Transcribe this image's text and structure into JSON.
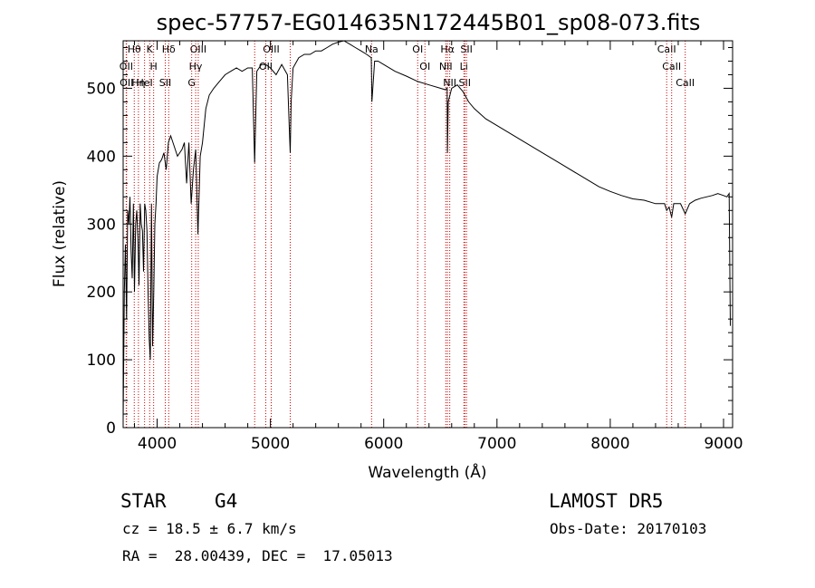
{
  "chart_data": {
    "type": "line",
    "title": "spec-57757-EG014635N172445B01_sp08-073.fits",
    "xlabel": "Wavelength (Å)",
    "ylabel": "Flux (relative)",
    "xlim": [
      3700,
      9080
    ],
    "ylim": [
      0,
      570
    ],
    "xticks": [
      4000,
      5000,
      6000,
      7000,
      8000,
      9000
    ],
    "yticks": [
      0,
      100,
      200,
      300,
      400,
      500
    ],
    "grid": false,
    "line_color": "#000000",
    "marker_color": "#cc0000",
    "series": [
      {
        "x": [
          3700,
          3710,
          3720,
          3730,
          3740,
          3750,
          3760,
          3770,
          3780,
          3790,
          3800,
          3810,
          3820,
          3830,
          3840,
          3850,
          3860,
          3870,
          3880,
          3890,
          3900,
          3910,
          3920,
          3930,
          3940,
          3950,
          3960,
          3970,
          3980,
          3990,
          4000,
          4020,
          4040,
          4060,
          4080,
          4100,
          4120,
          4140,
          4160,
          4180,
          4200,
          4220,
          4240,
          4260,
          4280,
          4300,
          4320,
          4340,
          4360,
          4380,
          4400,
          4430,
          4460,
          4500,
          4550,
          4600,
          4650,
          4700,
          4750,
          4800,
          4840,
          4861,
          4880,
          4920,
          4960,
          5000,
          5050,
          5100,
          5150,
          5167,
          5175,
          5183,
          5200,
          5250,
          5300,
          5350,
          5400,
          5450,
          5500,
          5550,
          5600,
          5650,
          5700,
          5750,
          5800,
          5850,
          5890,
          5896,
          5920,
          5950,
          6000,
          6100,
          6200,
          6300,
          6400,
          6500,
          6540,
          6560,
          6563,
          6570,
          6600,
          6650,
          6700,
          6750,
          6800,
          6900,
          7000,
          7100,
          7200,
          7300,
          7400,
          7500,
          7600,
          7700,
          7800,
          7900,
          8000,
          8100,
          8200,
          8300,
          8400,
          8480,
          8498,
          8520,
          8542,
          8560,
          8620,
          8662,
          8700,
          8750,
          8800,
          8850,
          8900,
          8950,
          9000,
          9030,
          9050,
          9060
        ],
        "y": [
          10,
          200,
          270,
          160,
          320,
          300,
          340,
          260,
          220,
          330,
          200,
          300,
          320,
          280,
          210,
          330,
          300,
          290,
          230,
          330,
          320,
          290,
          200,
          130,
          100,
          330,
          120,
          200,
          300,
          330,
          370,
          390,
          395,
          405,
          380,
          420,
          430,
          420,
          410,
          400,
          405,
          410,
          420,
          360,
          420,
          330,
          380,
          410,
          285,
          400,
          420,
          470,
          490,
          500,
          510,
          520,
          525,
          530,
          525,
          530,
          530,
          390,
          525,
          535,
          535,
          530,
          520,
          535,
          520,
          440,
          405,
          480,
          530,
          545,
          550,
          550,
          555,
          555,
          560,
          565,
          568,
          570,
          565,
          560,
          555,
          550,
          545,
          480,
          540,
          540,
          535,
          525,
          518,
          510,
          505,
          500,
          498,
          500,
          405,
          480,
          500,
          505,
          495,
          480,
          470,
          455,
          445,
          435,
          425,
          415,
          405,
          395,
          385,
          375,
          365,
          355,
          348,
          342,
          337,
          335,
          330,
          330,
          320,
          325,
          310,
          330,
          330,
          315,
          330,
          335,
          338,
          340,
          342,
          345,
          342,
          340,
          345,
          150
        ]
      }
    ],
    "line_markers": [
      {
        "label": "Hθ",
        "x": 3798
      },
      {
        "label": "OII",
        "x": 3727
      },
      {
        "label": "OII",
        "x": 3730
      },
      {
        "label": "HeI",
        "x": 3889
      },
      {
        "label": "Hη",
        "x": 3835
      },
      {
        "label": "K",
        "x": 3934
      },
      {
        "label": "H",
        "x": 3969
      },
      {
        "label": "Hδ",
        "x": 4102
      },
      {
        "label": "SII",
        "x": 4072
      },
      {
        "label": "OIII",
        "x": 4363
      },
      {
        "label": "Hγ",
        "x": 4340
      },
      {
        "label": "G",
        "x": 4305
      },
      {
        "label": "OIII",
        "x": 5007
      },
      {
        "label": "OII",
        "x": 4959
      },
      {
        "label": "",
        "x": 4861
      },
      {
        "label": "",
        "x": 5175
      },
      {
        "label": "Na",
        "x": 5893
      },
      {
        "label": "OI",
        "x": 6300
      },
      {
        "label": "OI",
        "x": 6364
      },
      {
        "label": "Hα",
        "x": 6563
      },
      {
        "label": "NII",
        "x": 6548
      },
      {
        "label": "NII",
        "x": 6583
      },
      {
        "label": "SII",
        "x": 6716
      },
      {
        "label": "SII",
        "x": 6731
      },
      {
        "label": "Li",
        "x": 6708
      },
      {
        "label": "CaII",
        "x": 8498
      },
      {
        "label": "CaII",
        "x": 8542
      },
      {
        "label": "CaII",
        "x": 8662
      }
    ]
  },
  "info": {
    "class_label": "STAR",
    "subclass_label": "G4",
    "survey": "LAMOST DR5",
    "cz_text": "cz = 18.5 ± 6.7 km/s",
    "obs_date": "Obs-Date: 20170103",
    "coords": "RA =  28.00439, DEC =  17.05013"
  }
}
